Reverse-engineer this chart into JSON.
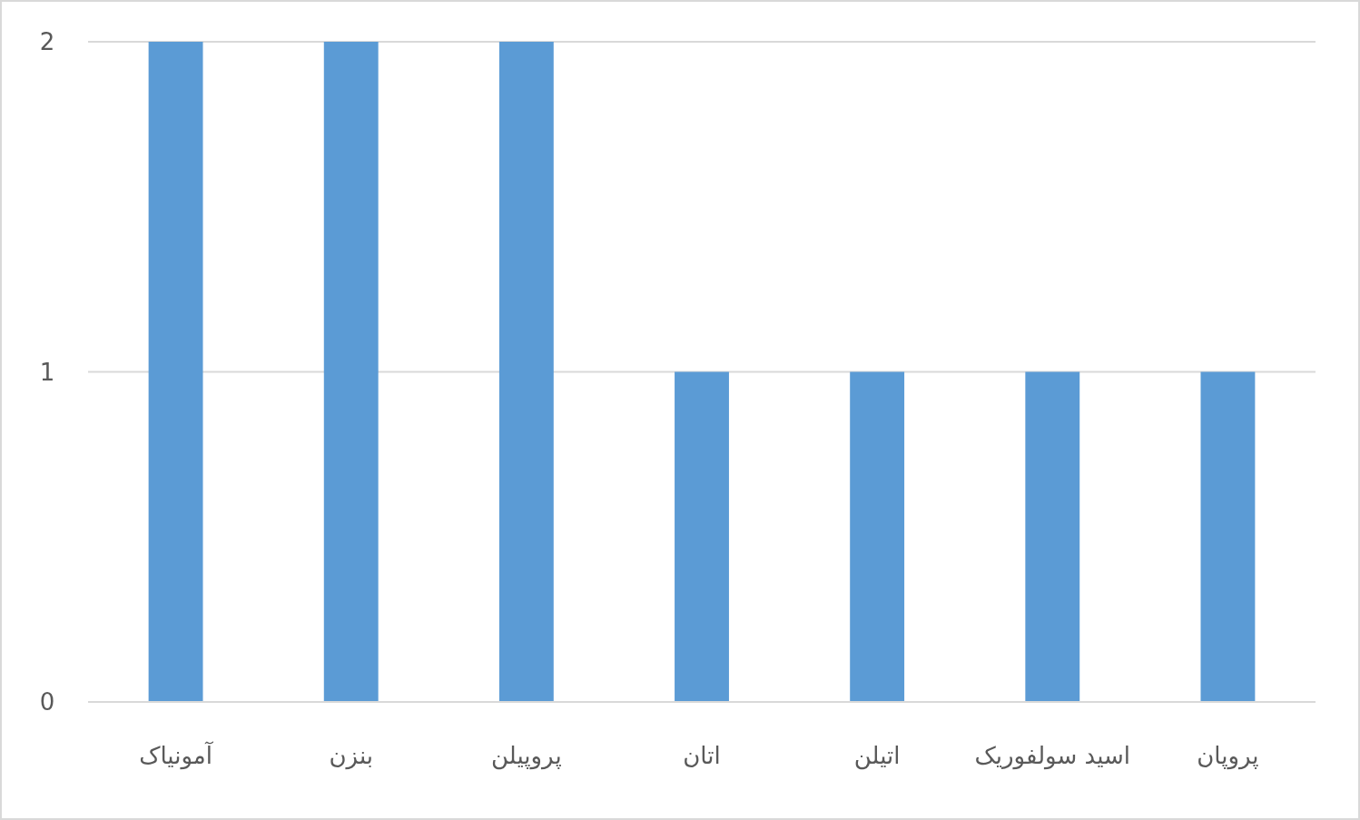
{
  "chart_data": {
    "type": "bar",
    "categories": [
      "آمونیاک",
      "بنزن",
      "پروپیلن",
      "اتان",
      "اتیلن",
      "اسید سولفوریک",
      "پروپان"
    ],
    "values": [
      2,
      2,
      2,
      1,
      1,
      1,
      1
    ],
    "color": "#5b9bd5",
    "ylim": [
      0,
      2
    ],
    "yticks": [
      0,
      1,
      2
    ],
    "grid": "y"
  }
}
